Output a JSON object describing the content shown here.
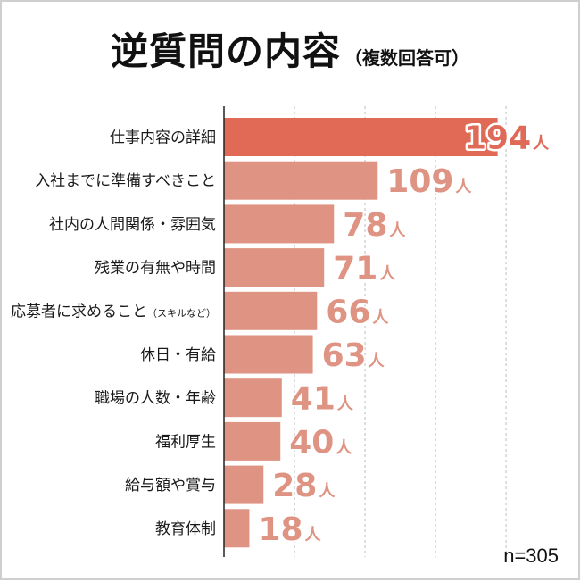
{
  "title": "逆質問の内容",
  "subtitle": "（複数回答可）",
  "sample_size": "n=305",
  "colors": {
    "top_bar": "#e06a55",
    "bar": "#df9383",
    "top_value_text": "#df6a58",
    "value_text": "#df9383",
    "grid": "#bdbdbd",
    "axis": "#222222"
  },
  "chart_data": {
    "type": "bar",
    "orientation": "horizontal",
    "categories": [
      "仕事内容の詳細",
      "入社までに準備すべきこと",
      "社内の人間関係・雰囲気",
      "残業の有無や時間",
      "応募者に求めること",
      "休日・有給",
      "職場の人数・年齢",
      "福利厚生",
      "給与額や賞与",
      "教育体制"
    ],
    "category_notes": [
      "",
      "",
      "",
      "",
      "（スキルなど）",
      "",
      "",
      "",
      "",
      ""
    ],
    "values": [
      194,
      109,
      78,
      71,
      66,
      63,
      41,
      40,
      28,
      18
    ],
    "unit": "人",
    "xlim": [
      0,
      205
    ],
    "gridlines": [
      50,
      100,
      150,
      200
    ],
    "grid": true
  }
}
